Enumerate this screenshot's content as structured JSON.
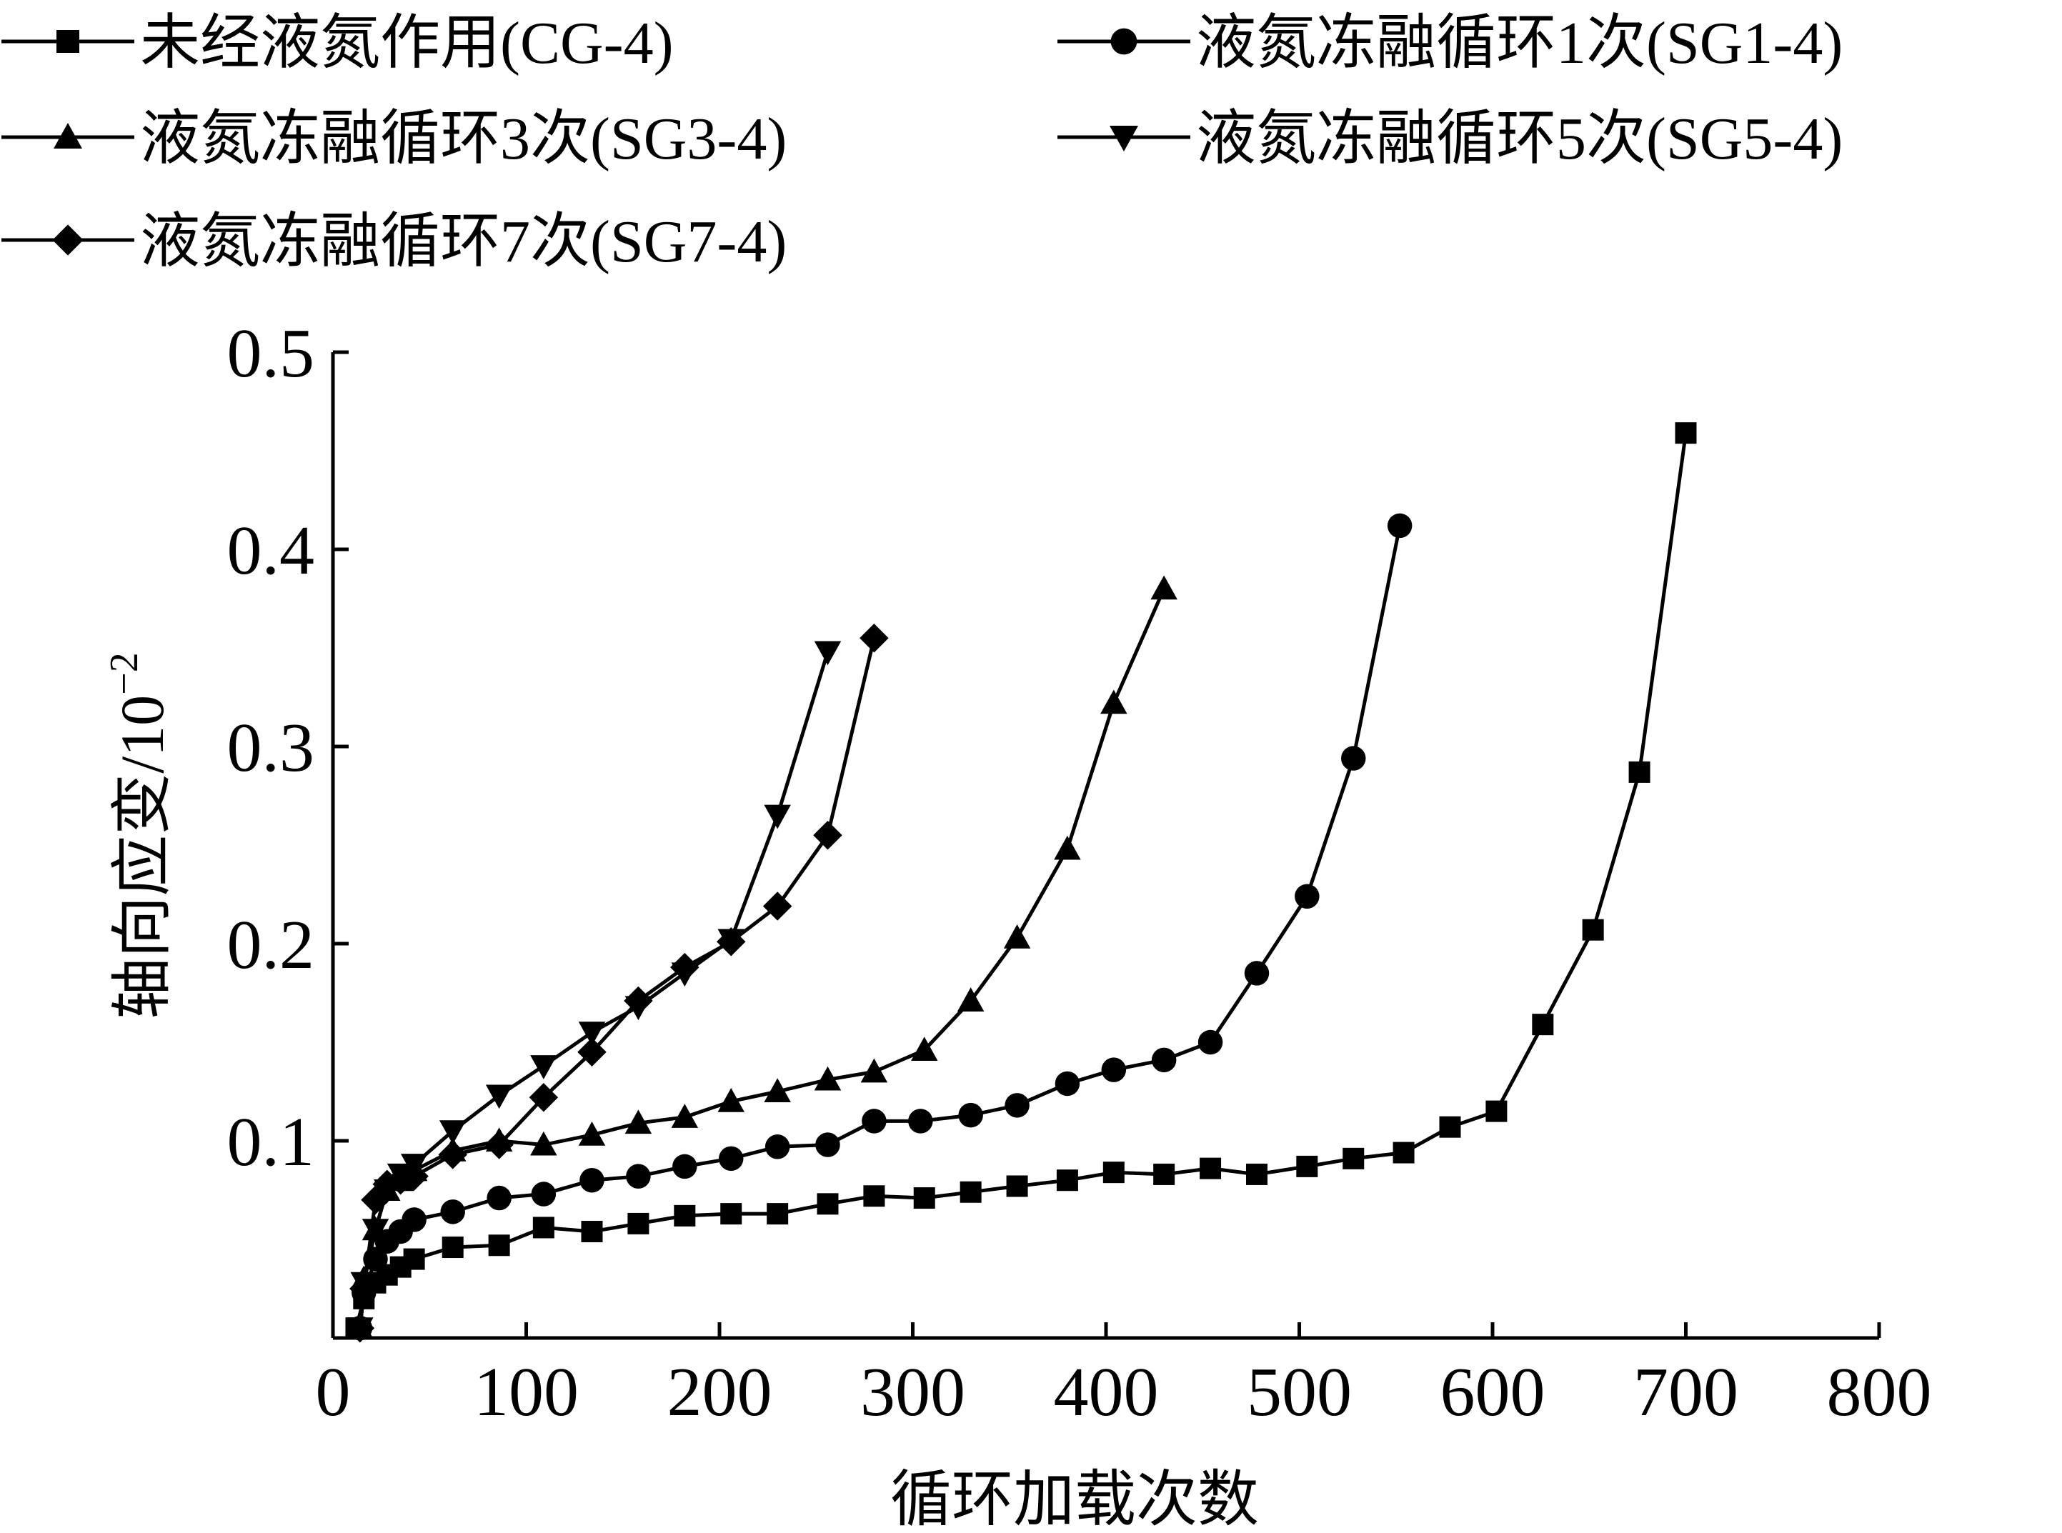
{
  "chart_data": {
    "type": "line",
    "xlabel": "循环加载次数",
    "ylabel_base": "轴向应变/10",
    "ylabel_exponent": "−2",
    "xlim": [
      0,
      800
    ],
    "ylim": [
      0,
      0.5
    ],
    "xticks": [
      0,
      100,
      200,
      300,
      400,
      500,
      600,
      700,
      800
    ],
    "yticks": [
      0.1,
      0.2,
      0.3,
      0.4,
      0.5
    ],
    "xtick_labels": [
      "0",
      "100",
      "200",
      "300",
      "400",
      "500",
      "600",
      "700",
      "800"
    ],
    "ytick_labels": [
      "0.1",
      "0.2",
      "0.3",
      "0.4",
      "0.5"
    ],
    "grid": false,
    "legend_position": "top",
    "series": [
      {
        "name": "未经液氮作用(CG-4)",
        "marker": "square",
        "color": "#000000",
        "points": [
          [
            12,
            0.005
          ],
          [
            16,
            0.02
          ],
          [
            22,
            0.028
          ],
          [
            28,
            0.032
          ],
          [
            35,
            0.036
          ],
          [
            42,
            0.04
          ],
          [
            62,
            0.046
          ],
          [
            86,
            0.047
          ],
          [
            109,
            0.056
          ],
          [
            134,
            0.054
          ],
          [
            158,
            0.058
          ],
          [
            182,
            0.062
          ],
          [
            206,
            0.063
          ],
          [
            230,
            0.063
          ],
          [
            256,
            0.068
          ],
          [
            280,
            0.072
          ],
          [
            306,
            0.071
          ],
          [
            330,
            0.074
          ],
          [
            354,
            0.077
          ],
          [
            380,
            0.08
          ],
          [
            404,
            0.084
          ],
          [
            430,
            0.083
          ],
          [
            454,
            0.086
          ],
          [
            478,
            0.083
          ],
          [
            504,
            0.087
          ],
          [
            528,
            0.091
          ],
          [
            554,
            0.094
          ],
          [
            578,
            0.107
          ],
          [
            602,
            0.115
          ],
          [
            626,
            0.159
          ],
          [
            652,
            0.207
          ],
          [
            676,
            0.287
          ],
          [
            700,
            0.459
          ]
        ]
      },
      {
        "name": "液氮冻融循环1次(SG1-4)",
        "marker": "circle",
        "color": "#000000",
        "points": [
          [
            14,
            0.005
          ],
          [
            16,
            0.023
          ],
          [
            22,
            0.04
          ],
          [
            28,
            0.049
          ],
          [
            35,
            0.054
          ],
          [
            42,
            0.06
          ],
          [
            62,
            0.064
          ],
          [
            86,
            0.071
          ],
          [
            109,
            0.073
          ],
          [
            134,
            0.08
          ],
          [
            158,
            0.082
          ],
          [
            182,
            0.087
          ],
          [
            206,
            0.091
          ],
          [
            230,
            0.097
          ],
          [
            256,
            0.098
          ],
          [
            280,
            0.11
          ],
          [
            304,
            0.11
          ],
          [
            330,
            0.113
          ],
          [
            354,
            0.118
          ],
          [
            380,
            0.129
          ],
          [
            404,
            0.136
          ],
          [
            430,
            0.141
          ],
          [
            454,
            0.15
          ],
          [
            478,
            0.185
          ],
          [
            504,
            0.224
          ],
          [
            528,
            0.294
          ],
          [
            552,
            0.412
          ]
        ]
      },
      {
        "name": "液氮冻融循环3次(SG3-4)",
        "marker": "triangle-up",
        "color": "#000000",
        "points": [
          [
            14,
            0.005
          ],
          [
            16,
            0.03
          ],
          [
            22,
            0.055
          ],
          [
            28,
            0.075
          ],
          [
            35,
            0.08
          ],
          [
            42,
            0.085
          ],
          [
            62,
            0.095
          ],
          [
            86,
            0.1
          ],
          [
            109,
            0.098
          ],
          [
            134,
            0.103
          ],
          [
            158,
            0.109
          ],
          [
            182,
            0.112
          ],
          [
            206,
            0.12
          ],
          [
            230,
            0.125
          ],
          [
            256,
            0.131
          ],
          [
            280,
            0.135
          ],
          [
            306,
            0.146
          ],
          [
            330,
            0.171
          ],
          [
            354,
            0.203
          ],
          [
            380,
            0.248
          ],
          [
            404,
            0.322
          ],
          [
            430,
            0.38
          ]
        ]
      },
      {
        "name": "液氮冻融循环5次(SG5-4)",
        "marker": "triangle-down",
        "color": "#000000",
        "points": [
          [
            14,
            0.005
          ],
          [
            16,
            0.028
          ],
          [
            22,
            0.055
          ],
          [
            28,
            0.075
          ],
          [
            35,
            0.083
          ],
          [
            42,
            0.088
          ],
          [
            62,
            0.105
          ],
          [
            86,
            0.123
          ],
          [
            109,
            0.138
          ],
          [
            134,
            0.155
          ],
          [
            158,
            0.168
          ],
          [
            182,
            0.185
          ],
          [
            206,
            0.202
          ],
          [
            230,
            0.265
          ],
          [
            256,
            0.348
          ]
        ]
      },
      {
        "name": "液氮冻融循环7次(SG7-4)",
        "marker": "diamond",
        "color": "#000000",
        "points": [
          [
            14,
            0.005
          ],
          [
            16,
            0.025
          ],
          [
            22,
            0.07
          ],
          [
            28,
            0.078
          ],
          [
            35,
            0.08
          ],
          [
            42,
            0.082
          ],
          [
            62,
            0.093
          ],
          [
            86,
            0.098
          ],
          [
            109,
            0.122
          ],
          [
            134,
            0.145
          ],
          [
            158,
            0.171
          ],
          [
            182,
            0.188
          ],
          [
            206,
            0.201
          ],
          [
            230,
            0.219
          ],
          [
            256,
            0.255
          ],
          [
            280,
            0.355
          ]
        ]
      }
    ]
  }
}
